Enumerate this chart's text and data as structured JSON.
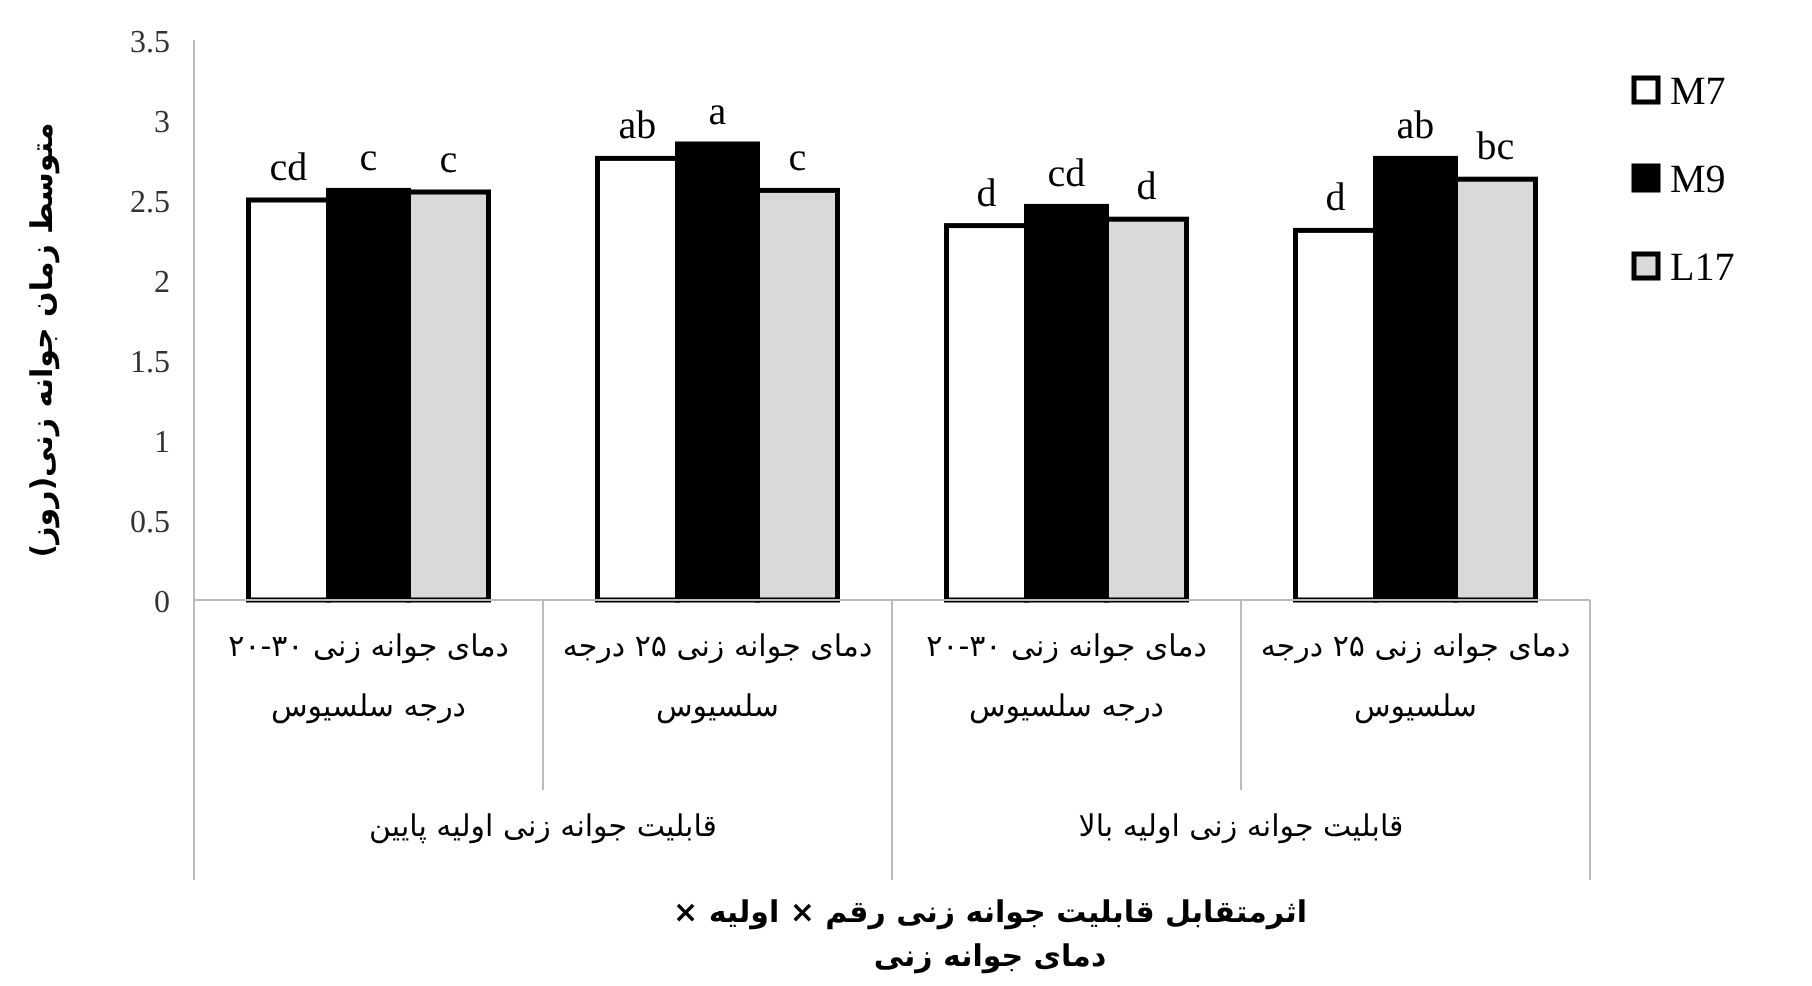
{
  "chart_data": {
    "type": "bar",
    "categories": [
      "دمای جوانه زنی ۳۰-۲۰ درجه سلسیوس",
      "دمای جوانه زنی ۲۵ درجه سلسیوس",
      "دمای جوانه زنی ۳۰-۲۰ درجه سلسیوس",
      "دمای جوانه زنی ۲۵ درجه سلسیوس"
    ],
    "series": [
      {
        "name": "M7",
        "color": "#ffffff",
        "values": [
          2.5,
          2.76,
          2.34,
          2.31
        ],
        "value_labels": [
          "cd",
          "ab",
          "d",
          "d"
        ]
      },
      {
        "name": "M9",
        "color": "#000000",
        "values": [
          2.56,
          2.85,
          2.46,
          2.76
        ],
        "value_labels": [
          "c",
          "a",
          "cd",
          "ab"
        ]
      },
      {
        "name": "L17",
        "color": "#d9d9d9",
        "values": [
          2.55,
          2.56,
          2.38,
          2.63
        ],
        "value_labels": [
          "c",
          "c",
          "d",
          "bc"
        ]
      }
    ],
    "ylim": [
      0,
      3.5
    ],
    "yticks": [
      0,
      0.5,
      1,
      1.5,
      2,
      2.5,
      3,
      3.5
    ],
    "ylabel": "متوسط زمان جوانه زنی(روز)",
    "annotations": [
      "قابلیت جوانه زنی اولیه پایین",
      "قابلیت جوانه زنی اولیه بالا",
      "اثرمتقابل  قابلیت جوانه زنی رقم × اولیه × دمای جوانه زنی"
    ],
    "legend": "right"
  }
}
